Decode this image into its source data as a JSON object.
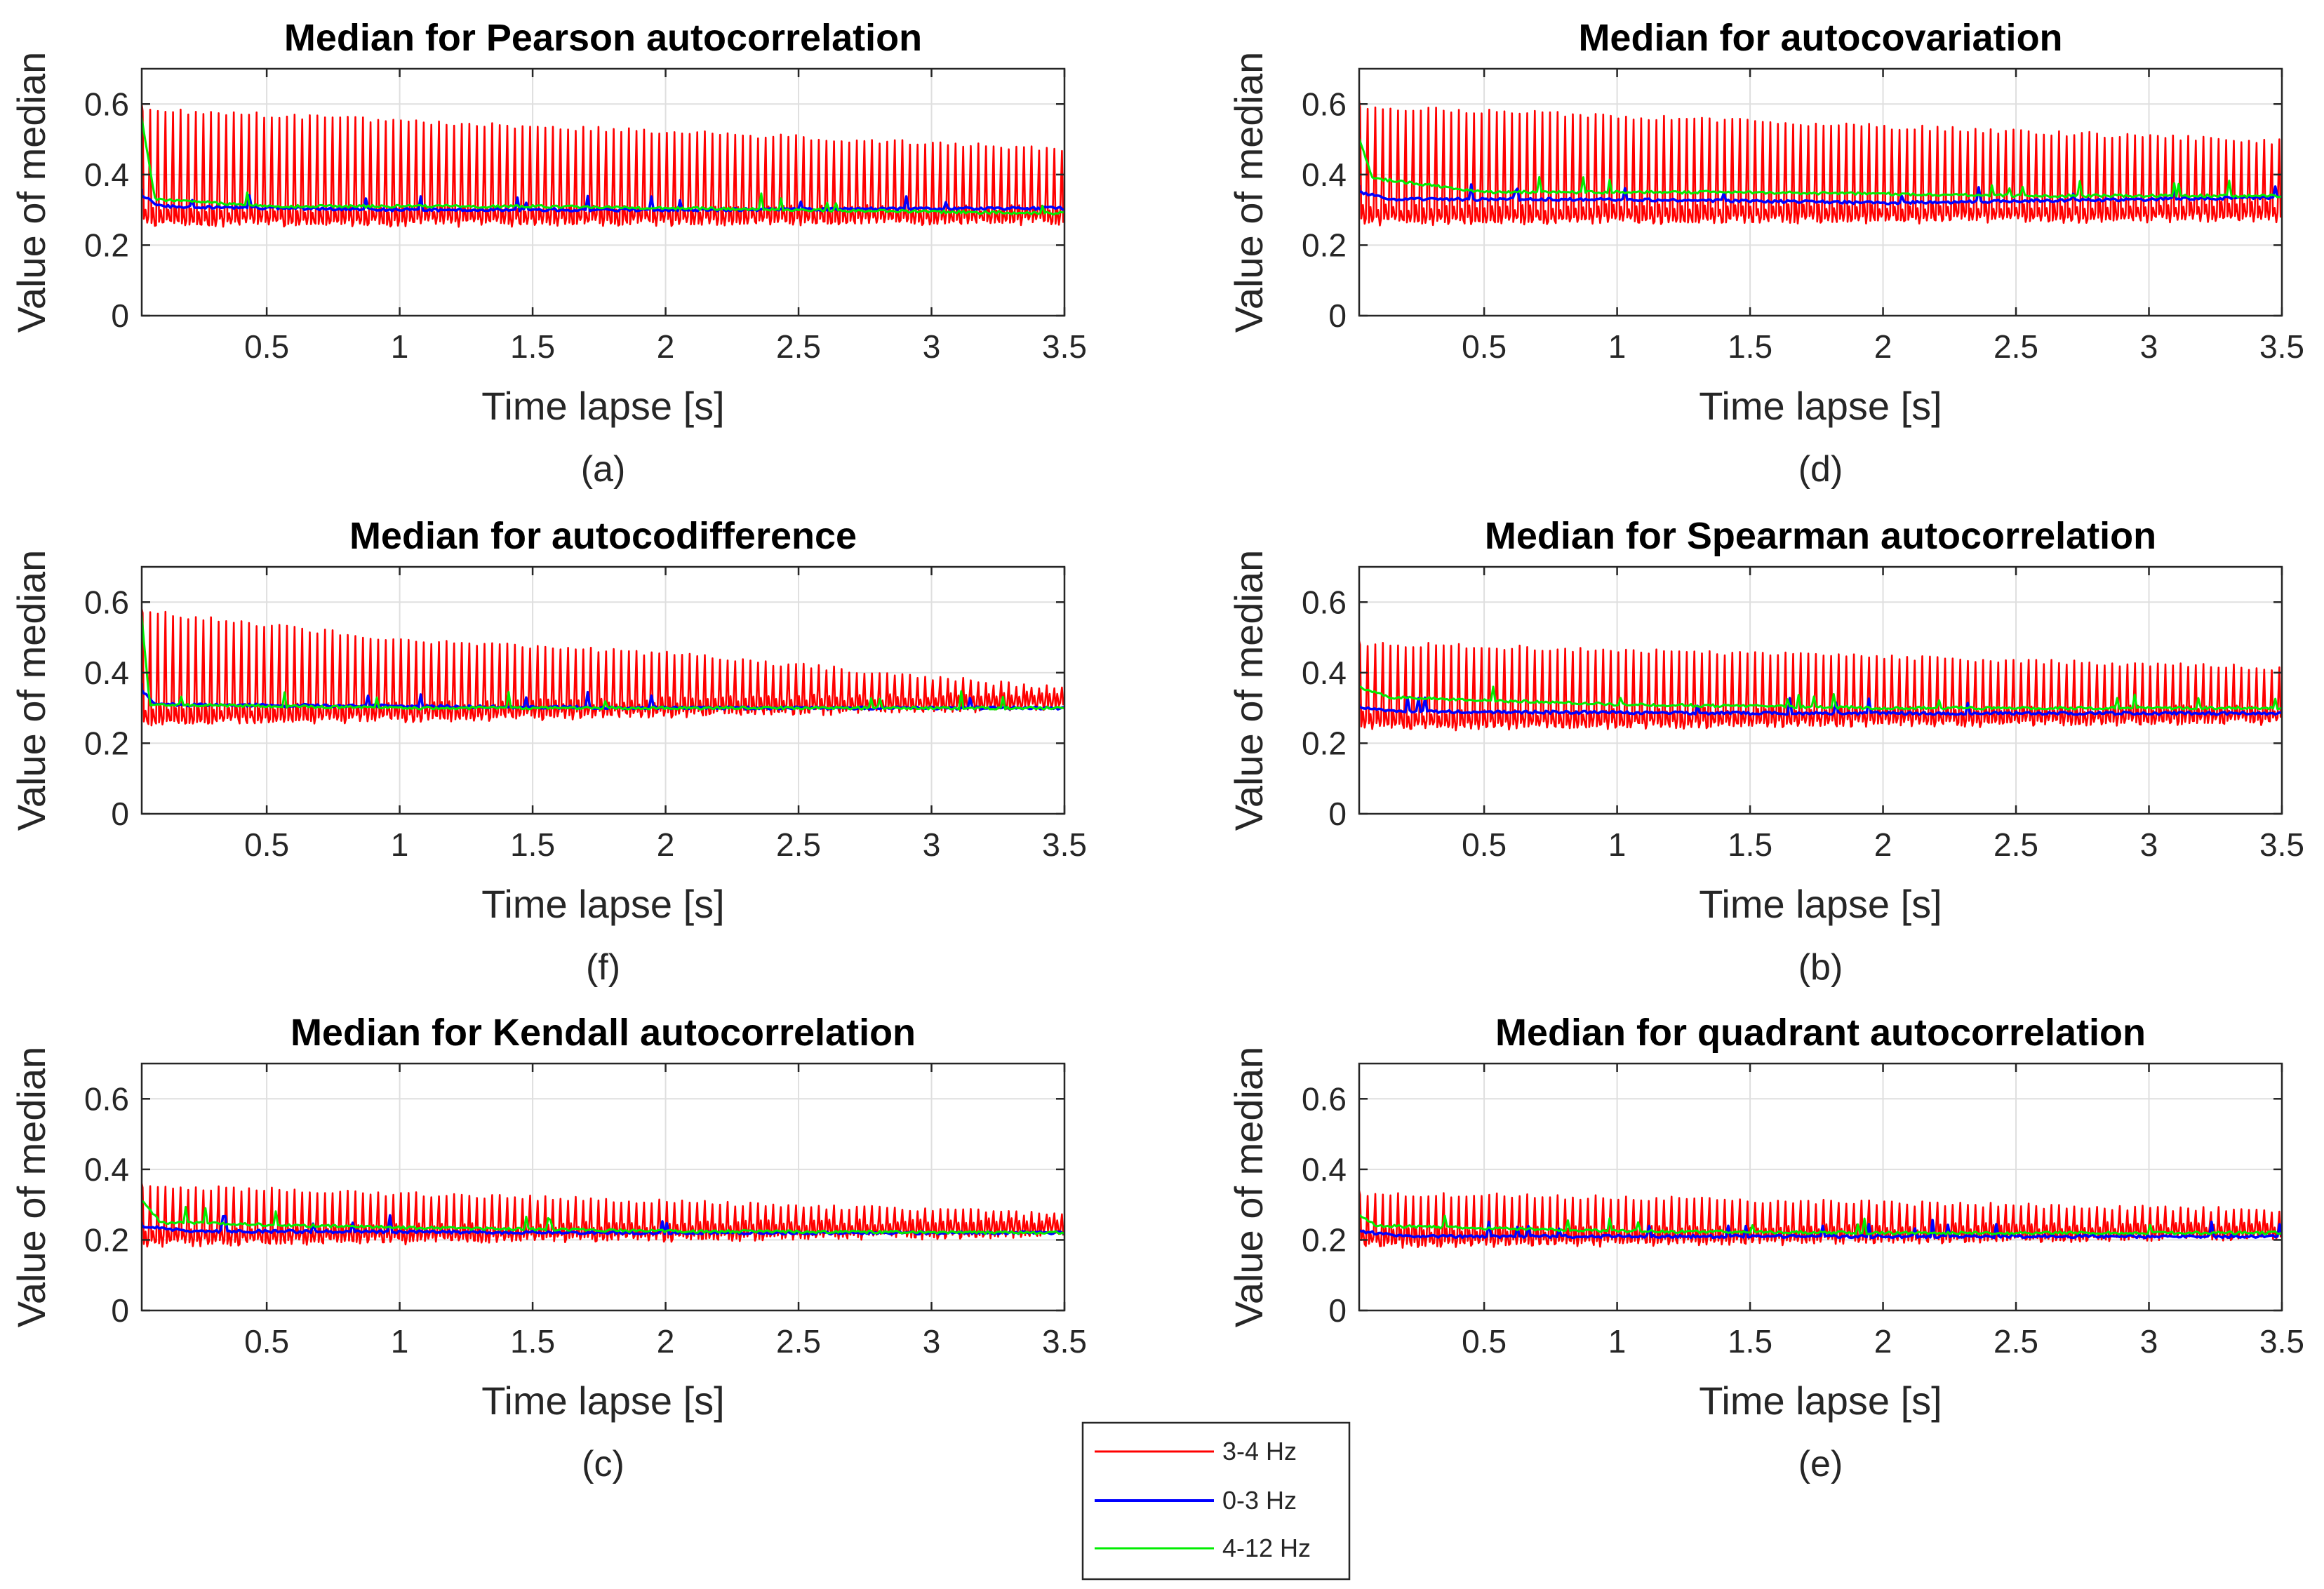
{
  "legend": {
    "entries": [
      {
        "label": "3-4 Hz",
        "color": "#ff0000"
      },
      {
        "label": "0-3 Hz",
        "color": "#0000ff"
      },
      {
        "label": "4-12 Hz",
        "color": "#00ee00"
      }
    ]
  },
  "chart_data": [
    {
      "id": "a",
      "type": "line",
      "title": "Median for Pearson autocorrelation",
      "xlabel": "Time lapse [s]",
      "ylabel": "Value of median",
      "caption": "(a)",
      "xlim": [
        0.03,
        3.5
      ],
      "ylim": [
        0,
        0.7
      ],
      "xticks": [
        0.5,
        1,
        1.5,
        2,
        2.5,
        3,
        3.5
      ],
      "xtick_labels": [
        "0.5",
        "1",
        "1.5",
        "2",
        "2.5",
        "3",
        "3.5"
      ],
      "yticks": [
        0,
        0.2,
        0.4,
        0.6
      ],
      "ytick_labels": [
        "0",
        "0.2",
        "0.4",
        "0.6"
      ],
      "grid": true,
      "series": [
        {
          "name": "3-4 Hz",
          "color": "#ff0000",
          "oscillation_hz": 35,
          "start": [
            0.03,
            0.6
          ],
          "upper": [
            [
              0.03,
              0.59
            ],
            [
              3.5,
              0.48
            ]
          ],
          "lower": [
            [
              0.03,
              0.255
            ],
            [
              3.5,
              0.26
            ]
          ]
        },
        {
          "name": "0-3 Hz",
          "color": "#0000ff",
          "start": [
            0.03,
            0.36
          ],
          "points": [
            [
              0.03,
              0.34
            ],
            [
              0.1,
              0.31
            ],
            [
              1.0,
              0.3
            ],
            [
              2.0,
              0.3
            ],
            [
              3.5,
              0.305
            ]
          ]
        },
        {
          "name": "4-12 Hz",
          "color": "#00ee00",
          "start": [
            0.03,
            0.56
          ],
          "points": [
            [
              0.03,
              0.56
            ],
            [
              0.08,
              0.33
            ],
            [
              0.5,
              0.31
            ],
            [
              1.5,
              0.31
            ],
            [
              2.5,
              0.3
            ],
            [
              3.5,
              0.29
            ]
          ]
        }
      ]
    },
    {
      "id": "d",
      "type": "line",
      "title": "Median for autocovariation",
      "xlabel": "Time lapse [s]",
      "ylabel": "Value of median",
      "caption": "(d)",
      "xlim": [
        0.03,
        3.5
      ],
      "ylim": [
        0,
        0.7
      ],
      "xticks": [
        0.5,
        1,
        1.5,
        2,
        2.5,
        3,
        3.5
      ],
      "xtick_labels": [
        "0.5",
        "1",
        "1.5",
        "2",
        "2.5",
        "3",
        "3.5"
      ],
      "yticks": [
        0,
        0.2,
        0.4,
        0.6
      ],
      "ytick_labels": [
        "0",
        "0.2",
        "0.4",
        "0.6"
      ],
      "grid": true,
      "series": [
        {
          "name": "3-4 Hz",
          "color": "#ff0000",
          "oscillation_hz": 35,
          "start": [
            0.03,
            0.61
          ],
          "upper": [
            [
              0.03,
              0.6
            ],
            [
              3.5,
              0.5
            ]
          ],
          "lower": [
            [
              0.03,
              0.26
            ],
            [
              3.5,
              0.27
            ]
          ]
        },
        {
          "name": "0-3 Hz",
          "color": "#0000ff",
          "start": [
            0.03,
            0.37
          ],
          "points": [
            [
              0.03,
              0.35
            ],
            [
              0.15,
              0.33
            ],
            [
              1.0,
              0.33
            ],
            [
              2.0,
              0.32
            ],
            [
              3.5,
              0.335
            ]
          ]
        },
        {
          "name": "4-12 Hz",
          "color": "#00ee00",
          "start": [
            0.03,
            0.5
          ],
          "points": [
            [
              0.03,
              0.5
            ],
            [
              0.08,
              0.39
            ],
            [
              0.5,
              0.35
            ],
            [
              1.5,
              0.35
            ],
            [
              2.5,
              0.34
            ],
            [
              3.5,
              0.34
            ]
          ]
        }
      ]
    },
    {
      "id": "f",
      "type": "line",
      "title": "Median for autocodifference",
      "xlabel": "Time lapse [s]",
      "ylabel": "Value of median",
      "caption": "(f)",
      "xlim": [
        0.03,
        3.5
      ],
      "ylim": [
        0,
        0.7
      ],
      "xticks": [
        0.5,
        1,
        1.5,
        2,
        2.5,
        3,
        3.5
      ],
      "xtick_labels": [
        "0.5",
        "1",
        "1.5",
        "2",
        "2.5",
        "3",
        "3.5"
      ],
      "yticks": [
        0,
        0.2,
        0.4,
        0.6
      ],
      "ytick_labels": [
        "0",
        "0.2",
        "0.4",
        "0.6"
      ],
      "grid": true,
      "series": [
        {
          "name": "3-4 Hz",
          "color": "#ff0000",
          "oscillation_hz": 35,
          "start": [
            0.03,
            0.58
          ],
          "upper": [
            [
              0.03,
              0.58
            ],
            [
              1.0,
              0.5
            ],
            [
              2.0,
              0.46
            ],
            [
              3.5,
              0.36
            ]
          ],
          "lower": [
            [
              0.03,
              0.25
            ],
            [
              1.5,
              0.27
            ],
            [
              3.5,
              0.295
            ]
          ]
        },
        {
          "name": "0-3 Hz",
          "color": "#0000ff",
          "start": [
            0.03,
            0.37
          ],
          "points": [
            [
              0.03,
              0.35
            ],
            [
              0.08,
              0.31
            ],
            [
              1.0,
              0.305
            ],
            [
              2.0,
              0.3
            ],
            [
              3.5,
              0.3
            ]
          ]
        },
        {
          "name": "4-12 Hz",
          "color": "#00ee00",
          "start": [
            0.03,
            0.56
          ],
          "points": [
            [
              0.03,
              0.56
            ],
            [
              0.06,
              0.31
            ],
            [
              1.0,
              0.3
            ],
            [
              2.0,
              0.3
            ],
            [
              3.5,
              0.3
            ]
          ]
        }
      ]
    },
    {
      "id": "b",
      "type": "line",
      "title": "Median for Spearman autocorrelation",
      "xlabel": "Time lapse [s]",
      "ylabel": "Value of median",
      "caption": "(b)",
      "xlim": [
        0.03,
        3.5
      ],
      "ylim": [
        0,
        0.7
      ],
      "xticks": [
        0.5,
        1,
        1.5,
        2,
        2.5,
        3,
        3.5
      ],
      "xtick_labels": [
        "0.5",
        "1",
        "1.5",
        "2",
        "2.5",
        "3",
        "3.5"
      ],
      "yticks": [
        0,
        0.2,
        0.4,
        0.6
      ],
      "ytick_labels": [
        "0",
        "0.2",
        "0.4",
        "0.6"
      ],
      "grid": true,
      "series": [
        {
          "name": "3-4 Hz",
          "color": "#ff0000",
          "oscillation_hz": 35,
          "start": [
            0.03,
            0.49
          ],
          "upper": [
            [
              0.03,
              0.49
            ],
            [
              3.5,
              0.42
            ]
          ],
          "lower": [
            [
              0.03,
              0.24
            ],
            [
              3.5,
              0.255
            ]
          ]
        },
        {
          "name": "0-3 Hz",
          "color": "#0000ff",
          "start": [
            0.03,
            0.31
          ],
          "points": [
            [
              0.03,
              0.3
            ],
            [
              0.2,
              0.29
            ],
            [
              1.5,
              0.285
            ],
            [
              3.5,
              0.285
            ]
          ]
        },
        {
          "name": "4-12 Hz",
          "color": "#00ee00",
          "start": [
            0.03,
            0.37
          ],
          "points": [
            [
              0.03,
              0.36
            ],
            [
              0.15,
              0.33
            ],
            [
              1.0,
              0.31
            ],
            [
              2.0,
              0.3
            ],
            [
              3.5,
              0.3
            ]
          ]
        }
      ]
    },
    {
      "id": "c",
      "type": "line",
      "title": "Median for Kendall autocorrelation",
      "xlabel": "Time lapse [s]",
      "ylabel": "Value of median",
      "caption": "(c)",
      "xlim": [
        0.03,
        3.5
      ],
      "ylim": [
        0,
        0.7
      ],
      "xticks": [
        0.5,
        1,
        1.5,
        2,
        2.5,
        3,
        3.5
      ],
      "xtick_labels": [
        "0.5",
        "1",
        "1.5",
        "2",
        "2.5",
        "3",
        "3.5"
      ],
      "yticks": [
        0,
        0.2,
        0.4,
        0.6
      ],
      "ytick_labels": [
        "0",
        "0.2",
        "0.4",
        "0.6"
      ],
      "grid": true,
      "series": [
        {
          "name": "3-4 Hz",
          "color": "#ff0000",
          "oscillation_hz": 35,
          "start": [
            0.03,
            0.36
          ],
          "upper": [
            [
              0.03,
              0.36
            ],
            [
              3.5,
              0.28
            ]
          ],
          "lower": [
            [
              0.03,
              0.185
            ],
            [
              3.5,
              0.21
            ]
          ]
        },
        {
          "name": "0-3 Hz",
          "color": "#0000ff",
          "start": [
            0.03,
            0.25
          ],
          "points": [
            [
              0.03,
              0.24
            ],
            [
              0.2,
              0.225
            ],
            [
              2.0,
              0.22
            ],
            [
              3.5,
              0.22
            ]
          ]
        },
        {
          "name": "4-12 Hz",
          "color": "#00ee00",
          "start": [
            0.03,
            0.31
          ],
          "points": [
            [
              0.03,
              0.31
            ],
            [
              0.1,
              0.25
            ],
            [
              1.0,
              0.235
            ],
            [
              2.0,
              0.225
            ],
            [
              3.5,
              0.22
            ]
          ]
        }
      ]
    },
    {
      "id": "e",
      "type": "line",
      "title": "Median for quadrant autocorrelation",
      "xlabel": "Time lapse [s]",
      "ylabel": "Value of median",
      "caption": "(e)",
      "xlim": [
        0.03,
        3.5
      ],
      "ylim": [
        0,
        0.7
      ],
      "xticks": [
        0.5,
        1,
        1.5,
        2,
        2.5,
        3,
        3.5
      ],
      "xtick_labels": [
        "0.5",
        "1",
        "1.5",
        "2",
        "2.5",
        "3",
        "3.5"
      ],
      "yticks": [
        0,
        0.2,
        0.4,
        0.6
      ],
      "ytick_labels": [
        "0",
        "0.2",
        "0.4",
        "0.6"
      ],
      "grid": true,
      "series": [
        {
          "name": "3-4 Hz",
          "color": "#ff0000",
          "oscillation_hz": 35,
          "start": [
            0.03,
            0.34
          ],
          "upper": [
            [
              0.03,
              0.34
            ],
            [
              3.5,
              0.29
            ]
          ],
          "lower": [
            [
              0.03,
              0.18
            ],
            [
              3.5,
              0.2
            ]
          ]
        },
        {
          "name": "0-3 Hz",
          "color": "#0000ff",
          "start": [
            0.03,
            0.23
          ],
          "points": [
            [
              0.03,
              0.225
            ],
            [
              0.2,
              0.21
            ],
            [
              2.0,
              0.21
            ],
            [
              3.5,
              0.21
            ]
          ]
        },
        {
          "name": "4-12 Hz",
          "color": "#00ee00",
          "start": [
            0.03,
            0.27
          ],
          "points": [
            [
              0.03,
              0.27
            ],
            [
              0.1,
              0.24
            ],
            [
              1.0,
              0.225
            ],
            [
              2.0,
              0.22
            ],
            [
              3.5,
              0.22
            ]
          ]
        }
      ]
    }
  ]
}
